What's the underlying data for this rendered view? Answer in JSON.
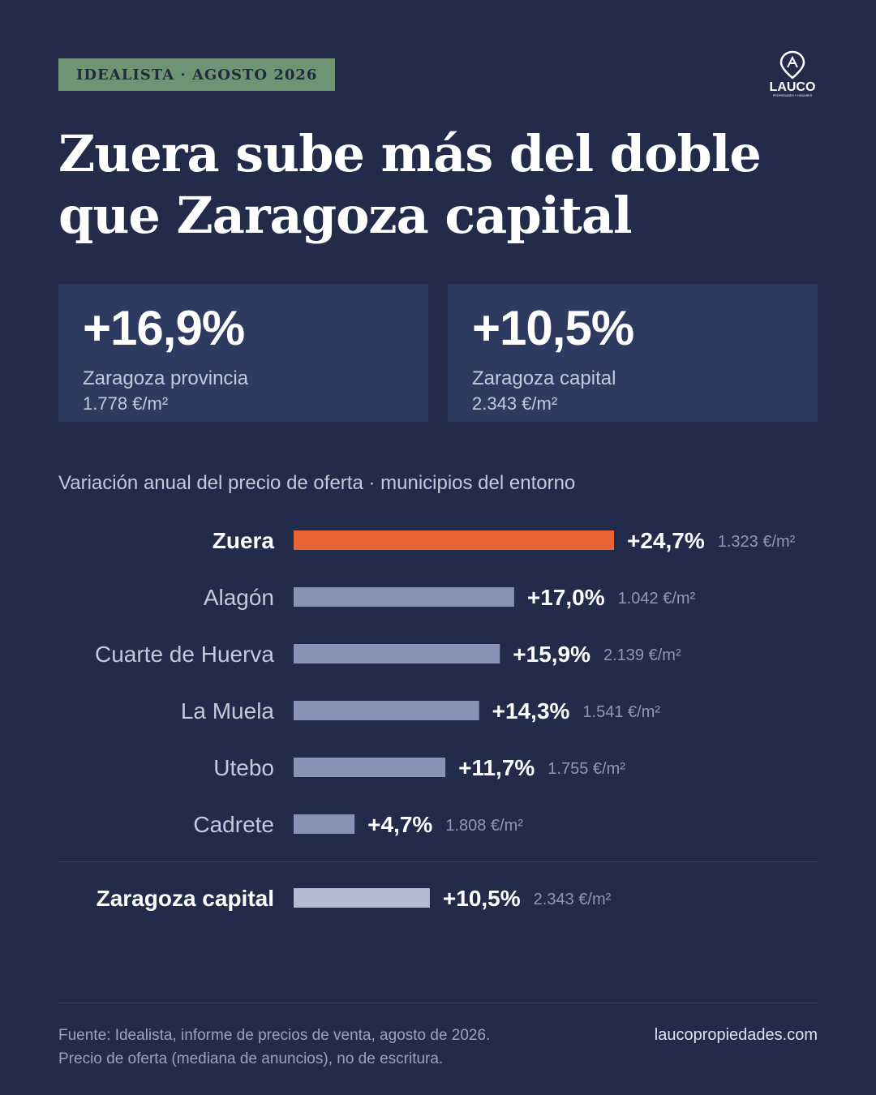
{
  "tag": "IDEALISTA · AGOSTO 2026",
  "logo": {
    "name": "LAUCO",
    "sub": "PROPIEDADES Y HOGARES"
  },
  "title": [
    "Zuera sube más del doble",
    "que Zaragoza capital"
  ],
  "cards": [
    {
      "value": "+16,9%",
      "label": "Zaragoza provincia",
      "price": "1.778 €/m²"
    },
    {
      "value": "+10,5%",
      "label": "Zaragoza capital",
      "price": "2.343 €/m²"
    }
  ],
  "subtitle": "Variación anual del precio de oferta · municipios del entorno",
  "colors": {
    "highlight": "#ea6535",
    "bar": "#8794b8",
    "reference": "#b3bcd3"
  },
  "chart_data": {
    "type": "bar",
    "orientation": "horizontal",
    "xlim": [
      0,
      24.7
    ],
    "categories": [
      "Zuera",
      "Alagón",
      "Cuarte de Huerva",
      "La Muela",
      "Utebo",
      "Cadrete",
      "Zaragoza capital"
    ],
    "values": [
      24.7,
      17.0,
      15.9,
      14.3,
      11.7,
      4.7,
      10.5
    ],
    "value_labels": [
      "+24,7%",
      "+17,0%",
      "+15,9%",
      "+14,3%",
      "+11,7%",
      "+4,7%",
      "+10,5%"
    ],
    "price_labels": [
      "1.323 €/m²",
      "1.042 €/m²",
      "2.139 €/m²",
      "1.541 €/m²",
      "1.755 €/m²",
      "1.808 €/m²",
      "2.343 €/m²"
    ],
    "highlight": "Zuera",
    "reference": "Zaragoza capital"
  },
  "footer": {
    "source": "Fuente: Idealista, informe de precios de venta, agosto de 2026.",
    "note": "Precio de oferta (mediana de anuncios), no de escritura.",
    "site": "laucopropiedades.com"
  }
}
